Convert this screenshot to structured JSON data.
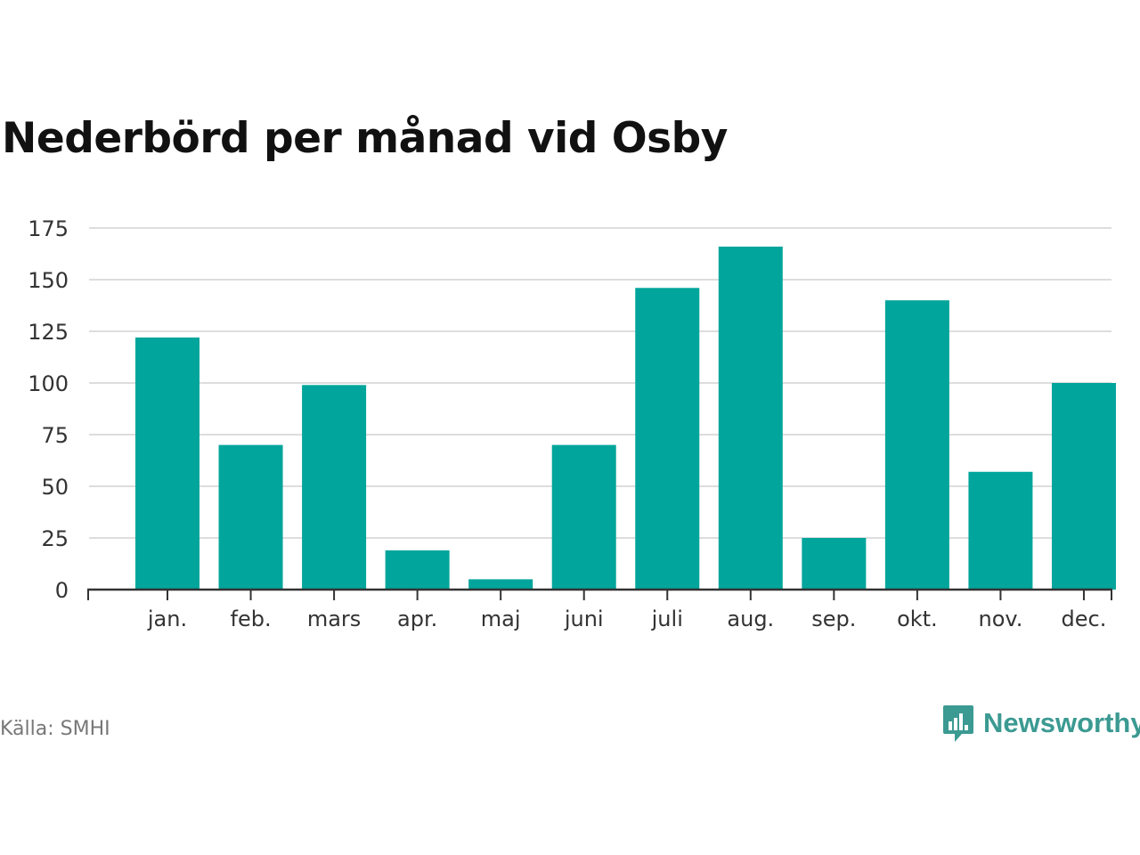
{
  "title": "Nederbörd per månad vid Osby",
  "source": "Källa: SMHI",
  "brand": {
    "name": "Newsworthy",
    "logo_icon": "speech-bubble-chart-icon",
    "color": "#3b9a92"
  },
  "chart_data": {
    "type": "bar",
    "categories": [
      "jan.",
      "feb.",
      "mars",
      "apr.",
      "maj",
      "juni",
      "juli",
      "aug.",
      "sep.",
      "okt.",
      "nov.",
      "dec."
    ],
    "values": [
      122,
      70,
      99,
      19,
      5,
      70,
      146,
      166,
      25,
      140,
      57,
      100
    ],
    "title": "Nederbörd per månad vid Osby",
    "xlabel": "",
    "ylabel": "",
    "ylim": [
      0,
      175
    ],
    "yticks": [
      0,
      25,
      50,
      75,
      100,
      125,
      150,
      175
    ],
    "grid": true,
    "legend": "none",
    "bar_color": "#02a59b",
    "grid_color": "#dddddd",
    "axis_color": "#333333"
  }
}
